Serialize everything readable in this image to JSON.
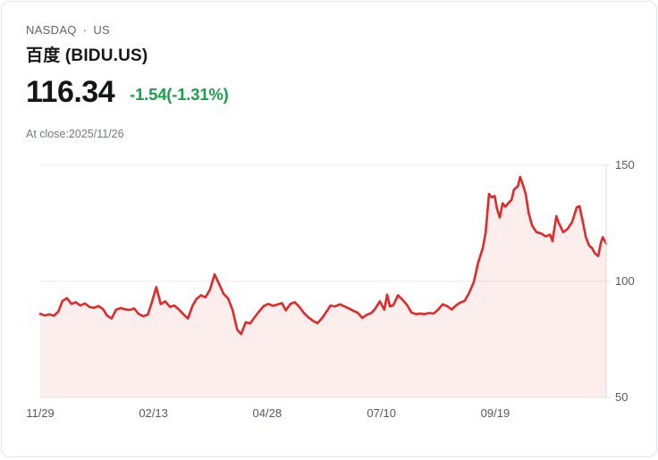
{
  "header": {
    "exchange": "NASDAQ",
    "separator": "·",
    "region": "US",
    "title": "百度 (BIDU.US)",
    "price": "116.34",
    "change": "-1.54(-1.31%)",
    "as_of": "At close:2025/11/26"
  },
  "colors": {
    "line": "#E02A2A",
    "area_fill": "rgba(224,42,42,0.08)",
    "change_green": "#1BA04A",
    "grid": "#E8E8E8",
    "axis_border": "#D9D9D9"
  },
  "chart_data": {
    "type": "area",
    "title": "BIDU.US one-year daily close price",
    "ylim": [
      50,
      150
    ],
    "grid": "horizontal",
    "y_axis_side": "right",
    "y_ticks": [
      {
        "label": "150",
        "value": 150
      },
      {
        "label": "100",
        "value": 100
      },
      {
        "label": "50",
        "value": 50
      }
    ],
    "x_ticks": [
      {
        "label": "11/29",
        "t": 0.0
      },
      {
        "label": "02/13",
        "t": 0.2
      },
      {
        "label": "04/28",
        "t": 0.401
      },
      {
        "label": "07/10",
        "t": 0.603
      },
      {
        "label": "09/19",
        "t": 0.804
      }
    ],
    "points": [
      [
        0.0,
        86.0
      ],
      [
        0.008,
        85.3
      ],
      [
        0.016,
        85.8
      ],
      [
        0.024,
        85.2
      ],
      [
        0.032,
        87.0
      ],
      [
        0.039,
        91.5
      ],
      [
        0.047,
        92.8
      ],
      [
        0.055,
        90.3
      ],
      [
        0.063,
        91.0
      ],
      [
        0.071,
        89.6
      ],
      [
        0.079,
        90.5
      ],
      [
        0.087,
        89.0
      ],
      [
        0.095,
        88.6
      ],
      [
        0.103,
        89.4
      ],
      [
        0.111,
        88.0
      ],
      [
        0.118,
        85.3
      ],
      [
        0.126,
        84.0
      ],
      [
        0.134,
        87.8
      ],
      [
        0.142,
        88.5
      ],
      [
        0.15,
        88.0
      ],
      [
        0.158,
        87.7
      ],
      [
        0.166,
        88.3
      ],
      [
        0.174,
        86.0
      ],
      [
        0.182,
        85.0
      ],
      [
        0.19,
        85.6
      ],
      [
        0.197,
        90.8
      ],
      [
        0.205,
        97.5
      ],
      [
        0.213,
        90.2
      ],
      [
        0.221,
        91.4
      ],
      [
        0.229,
        89.0
      ],
      [
        0.237,
        89.6
      ],
      [
        0.245,
        87.9
      ],
      [
        0.253,
        85.9
      ],
      [
        0.261,
        84.0
      ],
      [
        0.269,
        89.5
      ],
      [
        0.276,
        92.4
      ],
      [
        0.284,
        94.0
      ],
      [
        0.292,
        93.1
      ],
      [
        0.3,
        96.5
      ],
      [
        0.308,
        103.0
      ],
      [
        0.316,
        99.0
      ],
      [
        0.324,
        94.6
      ],
      [
        0.332,
        92.6
      ],
      [
        0.34,
        87.6
      ],
      [
        0.348,
        79.2
      ],
      [
        0.355,
        77.3
      ],
      [
        0.363,
        82.4
      ],
      [
        0.371,
        81.9
      ],
      [
        0.379,
        84.6
      ],
      [
        0.387,
        87.1
      ],
      [
        0.395,
        89.4
      ],
      [
        0.403,
        90.3
      ],
      [
        0.411,
        89.5
      ],
      [
        0.419,
        90.0
      ],
      [
        0.427,
        90.6
      ],
      [
        0.434,
        87.5
      ],
      [
        0.442,
        90.3
      ],
      [
        0.45,
        91.0
      ],
      [
        0.458,
        89.0
      ],
      [
        0.466,
        86.4
      ],
      [
        0.474,
        84.5
      ],
      [
        0.482,
        83.0
      ],
      [
        0.49,
        82.0
      ],
      [
        0.498,
        84.2
      ],
      [
        0.506,
        87.0
      ],
      [
        0.513,
        89.6
      ],
      [
        0.521,
        89.2
      ],
      [
        0.529,
        90.1
      ],
      [
        0.537,
        89.3
      ],
      [
        0.545,
        88.4
      ],
      [
        0.553,
        87.4
      ],
      [
        0.561,
        86.5
      ],
      [
        0.569,
        84.3
      ],
      [
        0.577,
        85.6
      ],
      [
        0.585,
        86.4
      ],
      [
        0.592,
        88.2
      ],
      [
        0.6,
        91.4
      ],
      [
        0.608,
        87.8
      ],
      [
        0.613,
        94.3
      ],
      [
        0.618,
        89.2
      ],
      [
        0.624,
        89.8
      ],
      [
        0.632,
        94.0
      ],
      [
        0.64,
        92.1
      ],
      [
        0.648,
        89.9
      ],
      [
        0.656,
        86.6
      ],
      [
        0.664,
        85.9
      ],
      [
        0.671,
        86.1
      ],
      [
        0.679,
        85.9
      ],
      [
        0.687,
        86.4
      ],
      [
        0.695,
        86.1
      ],
      [
        0.703,
        87.8
      ],
      [
        0.711,
        90.1
      ],
      [
        0.719,
        89.4
      ],
      [
        0.727,
        87.9
      ],
      [
        0.735,
        89.7
      ],
      [
        0.742,
        90.9
      ],
      [
        0.75,
        91.6
      ],
      [
        0.758,
        95.1
      ],
      [
        0.766,
        99.6
      ],
      [
        0.774,
        108.2
      ],
      [
        0.782,
        114.3
      ],
      [
        0.787,
        121.0
      ],
      [
        0.793,
        137.6
      ],
      [
        0.798,
        136.2
      ],
      [
        0.803,
        136.8
      ],
      [
        0.807,
        131.5
      ],
      [
        0.812,
        127.5
      ],
      [
        0.817,
        133.6
      ],
      [
        0.822,
        132.1
      ],
      [
        0.826,
        133.4
      ],
      [
        0.833,
        135.2
      ],
      [
        0.837,
        139.5
      ],
      [
        0.844,
        141.0
      ],
      [
        0.848,
        145.0
      ],
      [
        0.853,
        141.6
      ],
      [
        0.858,
        137.5
      ],
      [
        0.863,
        129.5
      ],
      [
        0.869,
        124.1
      ],
      [
        0.877,
        121.2
      ],
      [
        0.885,
        120.6
      ],
      [
        0.893,
        119.4
      ],
      [
        0.901,
        120.1
      ],
      [
        0.905,
        117.3
      ],
      [
        0.912,
        128.1
      ],
      [
        0.916,
        125.4
      ],
      [
        0.924,
        121.2
      ],
      [
        0.932,
        122.6
      ],
      [
        0.94,
        125.6
      ],
      [
        0.948,
        131.9
      ],
      [
        0.953,
        132.4
      ],
      [
        0.959,
        125.5
      ],
      [
        0.964,
        119.2
      ],
      [
        0.97,
        115.4
      ],
      [
        0.975,
        114.4
      ],
      [
        0.98,
        112.1
      ],
      [
        0.986,
        110.9
      ],
      [
        0.991,
        117.0
      ],
      [
        0.994,
        119.0
      ],
      [
        1.0,
        116.3
      ]
    ]
  }
}
